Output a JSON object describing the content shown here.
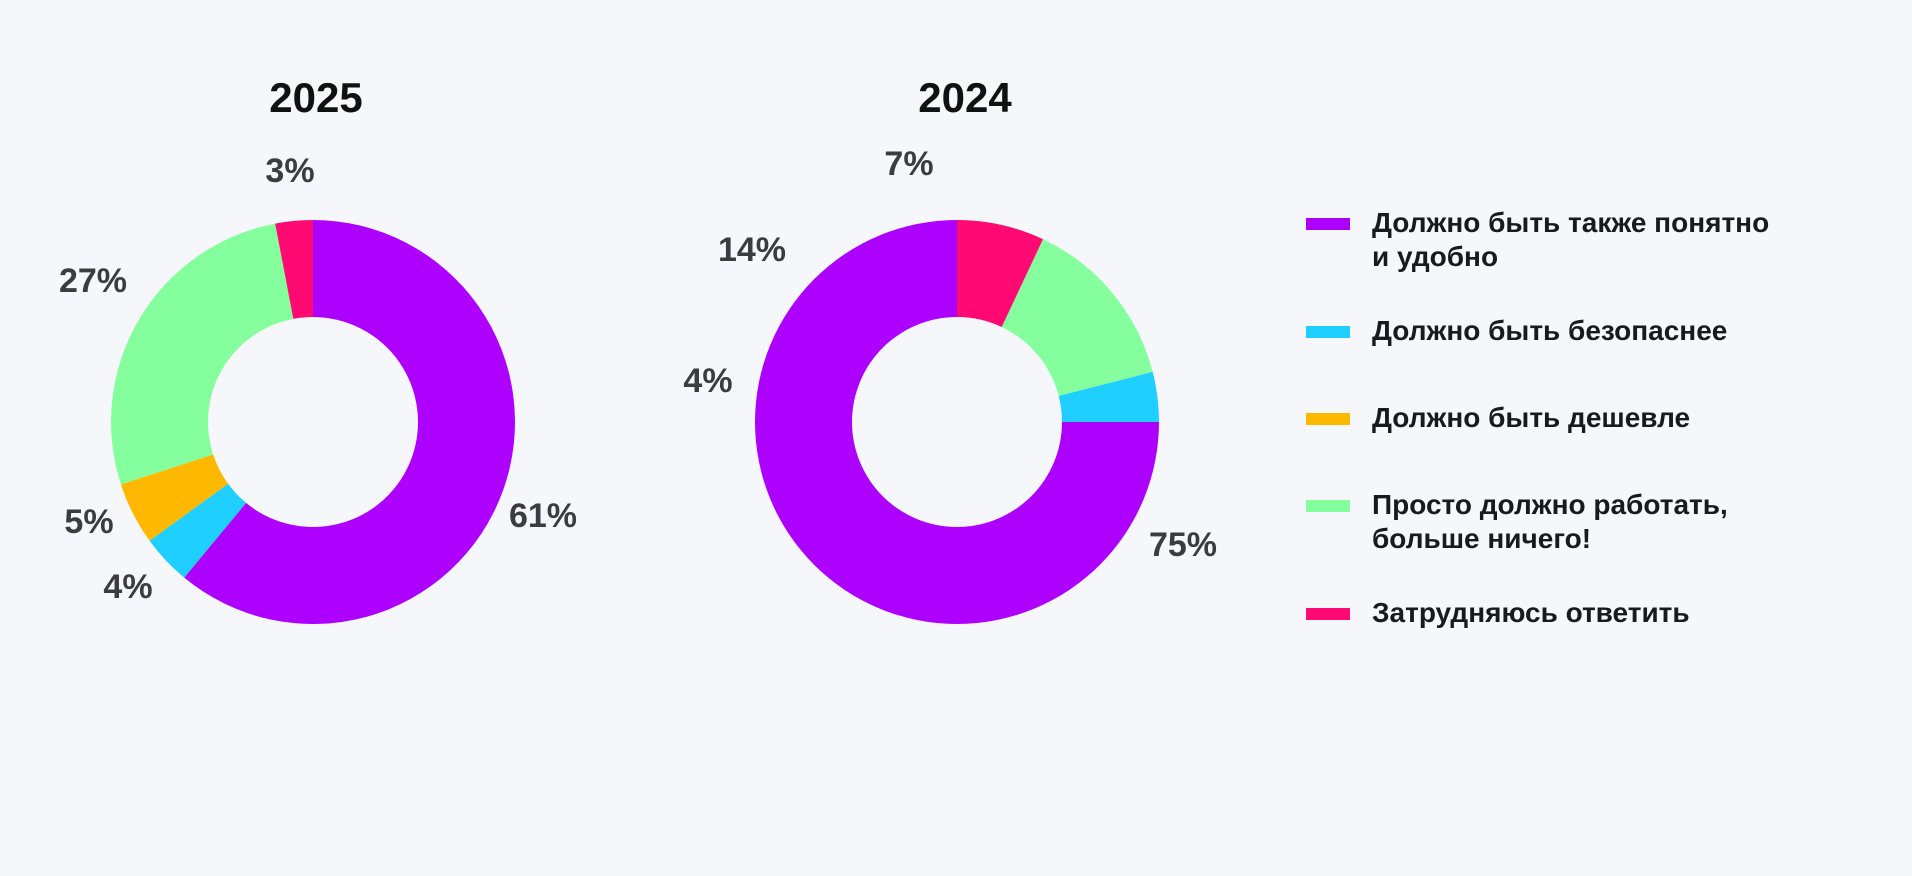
{
  "colors": {
    "background": "#f6f7fb",
    "text": "#1a1a1e",
    "percent_text": "#3b3b42",
    "series": [
      "#ae00ff",
      "#1ecfff",
      "#ffb800",
      "#85ff9e",
      "#ff0a73"
    ]
  },
  "legend": {
    "items": [
      {
        "label": "Должно быть также понятно и удобно",
        "color": "#ae00ff"
      },
      {
        "label": "Должно быть безопаснее",
        "color": "#1ecfff"
      },
      {
        "label": "Должно быть дешевле",
        "color": "#ffb800"
      },
      {
        "label": "Просто должно работать, больше ничего!",
        "color": "#85ff9e"
      },
      {
        "label": "Затрудняюсь ответить",
        "color": "#ff0a73"
      }
    ]
  },
  "chart_data": [
    {
      "type": "pie",
      "donut": true,
      "title": "2025",
      "categories": [
        "Должно быть также понятно и удобно",
        "Должно быть безопаснее",
        "Должно быть дешевле",
        "Просто должно работать, больше ничего!",
        "Затрудняюсь ответить"
      ],
      "values": [
        61,
        4,
        5,
        27,
        3
      ],
      "labels": [
        "61%",
        "4%",
        "5%",
        "27%",
        "3%"
      ],
      "legend": "right"
    },
    {
      "type": "pie",
      "donut": true,
      "title": "2024",
      "categories": [
        "Должно быть также понятно и удобно",
        "Должно быть безопаснее",
        "Должно быть дешевле",
        "Просто должно работать, больше ничего!",
        "Затрудняюсь ответить"
      ],
      "values": [
        75,
        4,
        0,
        14,
        7
      ],
      "labels": [
        "75%",
        "4%",
        "",
        "14%",
        "7%"
      ],
      "legend": "right"
    }
  ]
}
